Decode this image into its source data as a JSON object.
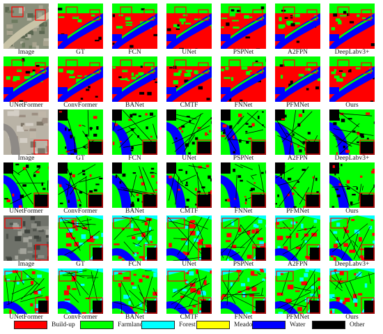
{
  "row_labels": [
    [
      "Image",
      "GT",
      "FCN",
      "UNet",
      "PSPNet",
      "A2FPN",
      "DeepLabv3+"
    ],
    [
      "UNetFormer",
      "ConvFormer",
      "BANet",
      "CMTF",
      "FNNet",
      "PFMNet",
      "Ours"
    ],
    [
      "Image",
      "GT",
      "FCN",
      "UNet",
      "PSPNet",
      "A2FPN",
      "DeepLabv3+"
    ],
    [
      "UNetFormer",
      "ConvFormer",
      "BANet",
      "CMTF",
      "FNNet",
      "PFMNet",
      "Ours"
    ],
    [
      "Image",
      "GT",
      "FCN",
      "UNet",
      "PSPNet",
      "A2FPN",
      "DeepLabv3+"
    ],
    [
      "UNetFormer",
      "ConvFormer",
      "BANet",
      "CMTF",
      "FNNet",
      "PFMNet",
      "Ours"
    ]
  ],
  "legend": [
    {
      "label": "Build-up",
      "color": "#ff0000"
    },
    {
      "label": "Farmland",
      "color": "#00ff00"
    },
    {
      "label": "Forest",
      "color": "#00ffff"
    },
    {
      "label": "Meadow",
      "color": "#ffff00"
    },
    {
      "label": "Water",
      "color": "#0000ff"
    },
    {
      "label": "Other",
      "color": "#000000"
    }
  ],
  "scene_colors": {
    "frame": "#ff0000",
    "water": "#0000ff",
    "farmland": "#00ff00",
    "buildup": "#ff0000",
    "forest": "#00ffff",
    "other": "#000000"
  }
}
